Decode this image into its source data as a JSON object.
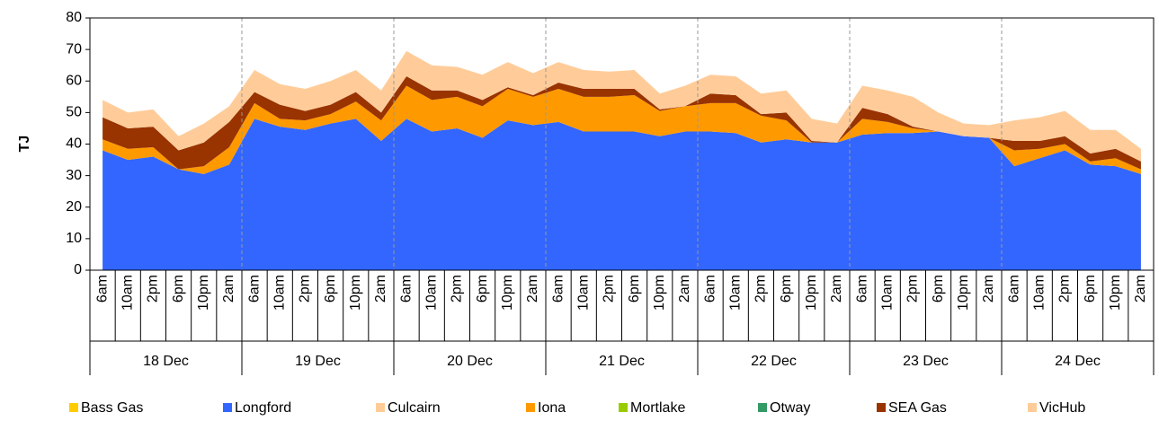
{
  "chart_data": {
    "type": "stacked-area",
    "y_label": "TJ",
    "categories": [
      "6am",
      "10am",
      "2pm",
      "6pm",
      "10pm",
      "2am",
      "6am",
      "10am",
      "2pm",
      "6pm",
      "10pm",
      "2am",
      "6am",
      "10am",
      "2pm",
      "6pm",
      "10pm",
      "2am",
      "6am",
      "10am",
      "2pm",
      "6pm",
      "10pm",
      "2am",
      "6am",
      "10am",
      "2pm",
      "6pm",
      "10pm",
      "2am",
      "6am",
      "10am",
      "2pm",
      "6pm",
      "10pm",
      "2am",
      "6am",
      "10am",
      "2pm",
      "6pm",
      "10pm",
      "2am"
    ],
    "category_groups": [
      "18 Dec",
      "19 Dec",
      "20 Dec",
      "21 Dec",
      "22 Dec",
      "23 Dec",
      "24 Dec"
    ],
    "series": [
      {
        "name": "Bass Gas",
        "color": "#ffcc00",
        "values": [
          0,
          0,
          0,
          0,
          0,
          0,
          0,
          0,
          0,
          0,
          0,
          0,
          0,
          0,
          0,
          0,
          0,
          0,
          0,
          0,
          0,
          0,
          0,
          0,
          0,
          0,
          0,
          0,
          0,
          0,
          0,
          0,
          0,
          0,
          0,
          0,
          0,
          0,
          0,
          0,
          0,
          0
        ]
      },
      {
        "name": "Longford",
        "color": "#3366ff",
        "values": [
          38,
          35,
          36,
          32,
          30.5,
          33.5,
          48,
          45.5,
          44.5,
          46.5,
          48,
          41,
          48,
          44,
          45,
          42,
          47.5,
          46,
          47,
          44,
          44,
          44,
          42.5,
          44,
          44,
          43.5,
          40.5,
          41.5,
          40.5,
          40.5,
          43,
          43.5,
          43.5,
          44,
          42.5,
          42,
          33,
          35.5,
          38,
          33.5,
          33,
          30.5
        ]
      },
      {
        "name": "Culcairn",
        "color": "#ffcc99",
        "values": [
          0,
          0,
          0,
          0,
          0,
          0,
          0,
          0,
          0,
          0,
          0,
          0,
          0,
          0,
          0,
          0,
          0,
          0,
          0,
          0,
          0,
          0,
          0,
          0,
          0,
          0,
          0,
          0,
          0,
          0,
          0,
          0,
          0,
          0,
          0,
          0,
          0,
          0,
          0,
          0,
          0,
          0
        ]
      },
      {
        "name": "Iona",
        "color": "#ff9900",
        "values": [
          3.5,
          3.5,
          3,
          0,
          2.5,
          5.5,
          5,
          2.5,
          3,
          3,
          5.5,
          6.5,
          10.5,
          10,
          10,
          10,
          10,
          9,
          10.5,
          11,
          11,
          11.5,
          8,
          8,
          9,
          9.5,
          8.5,
          6,
          0,
          0,
          5,
          3.5,
          1.5,
          0,
          0,
          0,
          5,
          3,
          2,
          1,
          2.5,
          1.5
        ]
      },
      {
        "name": "Mortlake",
        "color": "#99cc00",
        "values": [
          0,
          0,
          0,
          0,
          0,
          0,
          0,
          0,
          0,
          0,
          0,
          0,
          0,
          0,
          0,
          0,
          0,
          0,
          0,
          0,
          0,
          0,
          0,
          0,
          0,
          0,
          0,
          0,
          0,
          0,
          0,
          0,
          0,
          0,
          0,
          0,
          0,
          0,
          0,
          0,
          0,
          0
        ]
      },
      {
        "name": "Otway",
        "color": "#339966",
        "values": [
          0,
          0,
          0,
          0,
          0,
          0,
          0,
          0,
          0,
          0,
          0,
          0,
          0,
          0,
          0,
          0,
          0,
          0,
          0,
          0,
          0,
          0,
          0,
          0,
          0,
          0,
          0,
          0,
          0,
          0,
          0,
          0,
          0,
          0,
          0,
          0,
          0,
          0,
          0,
          0,
          0,
          0
        ]
      },
      {
        "name": "SEA Gas",
        "color": "#993300",
        "values": [
          7,
          6.5,
          6.5,
          6,
          7.5,
          8,
          3.5,
          4.5,
          3,
          3,
          3,
          2.5,
          3,
          3,
          2,
          2,
          0.5,
          0.5,
          2,
          2.5,
          2.5,
          2,
          0.5,
          0,
          3,
          2.5,
          0.5,
          2.5,
          0.5,
          0,
          3.5,
          2.5,
          0.5,
          0,
          0,
          0,
          3,
          2.5,
          2.5,
          2.5,
          3,
          2.5
        ]
      },
      {
        "name": "VicHub",
        "color": "#ffcc99",
        "values": [
          5.5,
          5,
          5.5,
          4.5,
          6,
          5,
          7,
          6.5,
          7,
          7.5,
          7,
          7,
          8,
          8,
          7.5,
          8,
          8,
          7,
          6.5,
          6,
          5.5,
          6,
          5,
          6.5,
          6,
          6,
          6.5,
          7,
          7,
          6,
          7,
          7.5,
          9.5,
          6,
          4,
          4,
          6.5,
          7.5,
          8,
          7.5,
          6,
          4
        ]
      }
    ],
    "ylim": [
      0,
      80
    ],
    "yticks": [
      0,
      10,
      20,
      30,
      40,
      50,
      60,
      70,
      80
    ],
    "grid": false
  }
}
